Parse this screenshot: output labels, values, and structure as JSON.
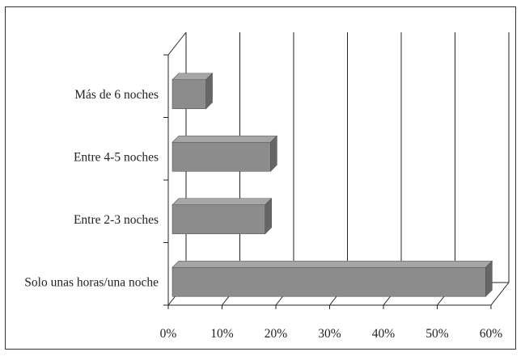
{
  "chart_data": {
    "type": "bar",
    "orientation": "horizontal",
    "three_d": true,
    "categories": [
      "Más de 6 noches",
      "Entre 4-5 noches",
      "Entre 2-3 noches",
      "Solo unas horas/una noche"
    ],
    "values": [
      7,
      19,
      18,
      59
    ],
    "unit": "%",
    "xlim": [
      0,
      60
    ],
    "x_ticks": [
      0,
      10,
      20,
      30,
      40,
      50,
      60
    ],
    "x_tick_labels": [
      "0%",
      "10%",
      "20%",
      "30%",
      "40%",
      "50%",
      "60%"
    ],
    "grid": true,
    "legend": "none",
    "colors": {
      "bar": "#8c8c8c",
      "bar_top": "#a6a6a6",
      "bar_side": "#666666",
      "axis": "#222222"
    }
  }
}
